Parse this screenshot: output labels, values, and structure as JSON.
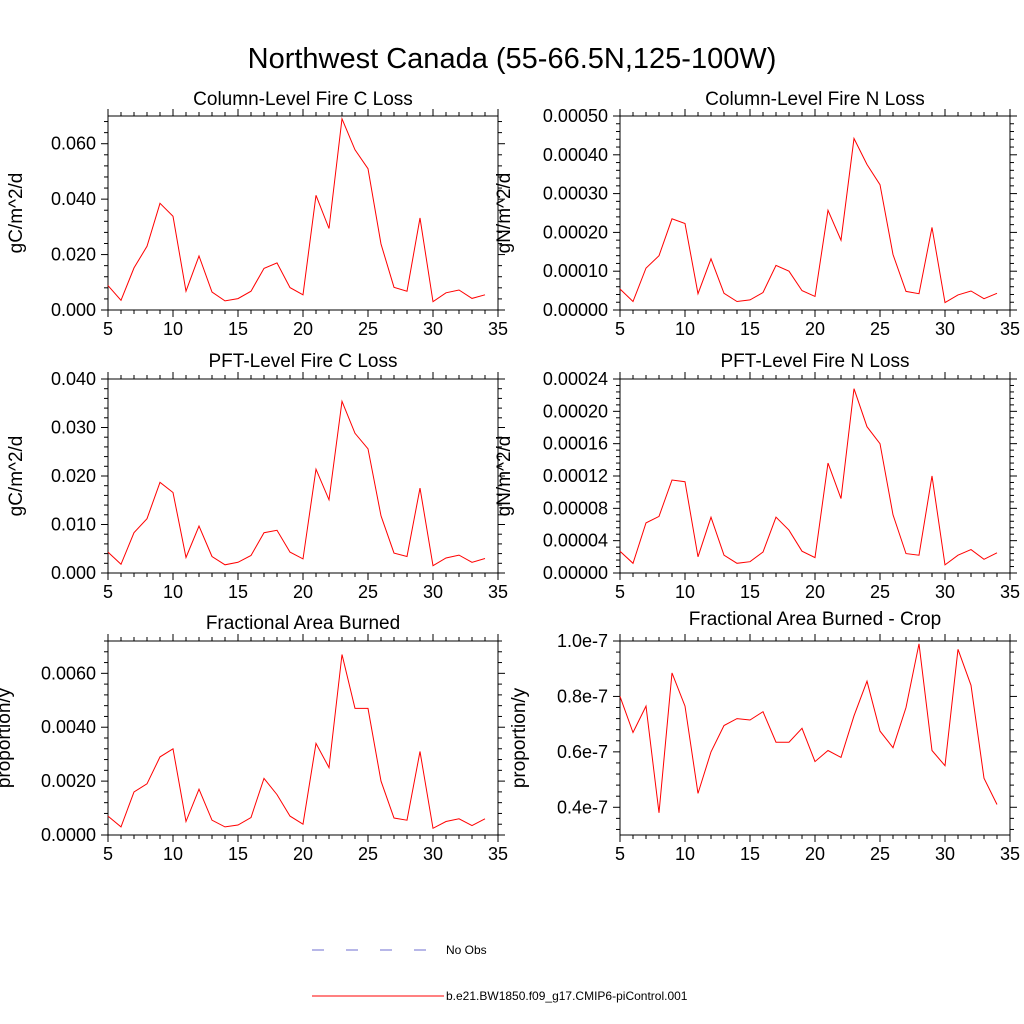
{
  "figure": {
    "title": "Northwest Canada (55-66.5N,125-100W)"
  },
  "chart_data": [
    {
      "type": "line",
      "title": "Column-Level Fire C Loss",
      "xlabel": "",
      "ylabel": "gC/m^2/d",
      "xlim": [
        5,
        35
      ],
      "ylim": [
        0,
        0.07
      ],
      "x_ticks": [
        5,
        10,
        15,
        20,
        25,
        30,
        35
      ],
      "x_tick_labels": [
        "5",
        "10",
        "15",
        "20",
        "25",
        "30",
        "35"
      ],
      "y_ticks": [
        0,
        0.02,
        0.04,
        0.06
      ],
      "y_tick_labels": [
        "0.000",
        "0.020",
        "0.040",
        "0.060"
      ],
      "x": [
        5,
        6,
        7,
        8,
        9,
        10,
        11,
        12,
        13,
        14,
        15,
        16,
        17,
        18,
        19,
        20,
        21,
        22,
        23,
        24,
        25,
        26,
        27,
        28,
        29,
        30,
        31,
        32,
        33,
        34
      ],
      "series": [
        {
          "name": "b.e21.BW1850.f09_g17.CMIP6-piControl.001",
          "values": [
            0.0088,
            0.0035,
            0.0152,
            0.023,
            0.0385,
            0.0338,
            0.0068,
            0.0195,
            0.0065,
            0.0033,
            0.0041,
            0.0068,
            0.015,
            0.017,
            0.0081,
            0.0055,
            0.0414,
            0.0294,
            0.069,
            0.0578,
            0.051,
            0.0238,
            0.0082,
            0.0068,
            0.0332,
            0.003,
            0.0062,
            0.0072,
            0.0042,
            0.0055
          ]
        }
      ]
    },
    {
      "type": "line",
      "title": "Column-Level Fire N Loss",
      "xlabel": "",
      "ylabel": "gN/m^2/d",
      "xlim": [
        5,
        35
      ],
      "ylim": [
        0,
        0.0005
      ],
      "x_ticks": [
        5,
        10,
        15,
        20,
        25,
        30,
        35
      ],
      "x_tick_labels": [
        "5",
        "10",
        "15",
        "20",
        "25",
        "30",
        "35"
      ],
      "y_ticks": [
        0,
        0.0001,
        0.0002,
        0.0003,
        0.0004,
        0.0005
      ],
      "y_tick_labels": [
        "0.00000",
        "0.00010",
        "0.00020",
        "0.00030",
        "0.00040",
        "0.00050"
      ],
      "x": [
        5,
        6,
        7,
        8,
        9,
        10,
        11,
        12,
        13,
        14,
        15,
        16,
        17,
        18,
        19,
        20,
        21,
        22,
        23,
        24,
        25,
        26,
        27,
        28,
        29,
        30,
        31,
        32,
        33,
        34
      ],
      "series": [
        {
          "name": "b.e21.BW1850.f09_g17.CMIP6-piControl.001",
          "values": [
            5.4e-05,
            2.2e-05,
            0.000108,
            0.00014,
            0.000235,
            0.000223,
            4.2e-05,
            0.000132,
            4.3e-05,
            2.2e-05,
            2.6e-05,
            4.5e-05,
            0.000115,
            0.0001,
            5e-05,
            3.5e-05,
            0.000257,
            0.00018,
            0.000442,
            0.000375,
            0.000323,
            0.000143,
            4.8e-05,
            4.2e-05,
            0.000213,
            1.9e-05,
            3.9e-05,
            4.9e-05,
            2.9e-05,
            4.3e-05
          ]
        }
      ]
    },
    {
      "type": "line",
      "title": "PFT-Level Fire C Loss",
      "xlabel": "",
      "ylabel": "gC/m^2/d",
      "xlim": [
        5,
        35
      ],
      "ylim": [
        0,
        0.04
      ],
      "x_ticks": [
        5,
        10,
        15,
        20,
        25,
        30,
        35
      ],
      "x_tick_labels": [
        "5",
        "10",
        "15",
        "20",
        "25",
        "30",
        "35"
      ],
      "y_ticks": [
        0,
        0.01,
        0.02,
        0.03,
        0.04
      ],
      "y_tick_labels": [
        "0.000",
        "0.010",
        "0.020",
        "0.030",
        "0.040"
      ],
      "x": [
        5,
        6,
        7,
        8,
        9,
        10,
        11,
        12,
        13,
        14,
        15,
        16,
        17,
        18,
        19,
        20,
        21,
        22,
        23,
        24,
        25,
        26,
        27,
        28,
        29,
        30,
        31,
        32,
        33,
        34
      ],
      "series": [
        {
          "name": "b.e21.BW1850.f09_g17.CMIP6-piControl.001",
          "values": [
            0.0043,
            0.0018,
            0.0083,
            0.0112,
            0.0187,
            0.0166,
            0.0032,
            0.0097,
            0.0034,
            0.0017,
            0.0022,
            0.0036,
            0.0083,
            0.0088,
            0.0043,
            0.0029,
            0.0214,
            0.0151,
            0.0354,
            0.0288,
            0.0256,
            0.0118,
            0.0041,
            0.0034,
            0.0175,
            0.0015,
            0.0031,
            0.0037,
            0.0022,
            0.003
          ]
        }
      ]
    },
    {
      "type": "line",
      "title": "PFT-Level Fire N Loss",
      "xlabel": "",
      "ylabel": "gN/m^2/d",
      "xlim": [
        5,
        35
      ],
      "ylim": [
        0,
        0.00024
      ],
      "x_ticks": [
        5,
        10,
        15,
        20,
        25,
        30,
        35
      ],
      "x_tick_labels": [
        "5",
        "10",
        "15",
        "20",
        "25",
        "30",
        "35"
      ],
      "y_ticks": [
        0,
        4e-05,
        8e-05,
        0.00012,
        0.00016,
        0.0002,
        0.00024
      ],
      "y_tick_labels": [
        "0.00000",
        "0.00004",
        "0.00008",
        "0.00012",
        "0.00016",
        "0.00020",
        "0.00024"
      ],
      "x": [
        5,
        6,
        7,
        8,
        9,
        10,
        11,
        12,
        13,
        14,
        15,
        16,
        17,
        18,
        19,
        20,
        21,
        22,
        23,
        24,
        25,
        26,
        27,
        28,
        29,
        30,
        31,
        32,
        33,
        34
      ],
      "series": [
        {
          "name": "b.e21.BW1850.f09_g17.CMIP6-piControl.001",
          "values": [
            2.7e-05,
            1.2e-05,
            6.2e-05,
            7e-05,
            0.000115,
            0.000113,
            2e-05,
            6.9e-05,
            2.2e-05,
            1.2e-05,
            1.4e-05,
            2.6e-05,
            6.9e-05,
            5.3e-05,
            2.7e-05,
            1.9e-05,
            0.000136,
            9.2e-05,
            0.000228,
            0.000181,
            0.00016,
            7.2e-05,
            2.4e-05,
            2.2e-05,
            0.00012,
            1e-05,
            2.2e-05,
            2.9e-05,
            1.7e-05,
            2.5e-05
          ]
        }
      ]
    },
    {
      "type": "line",
      "title": "Fractional Area Burned",
      "xlabel": "",
      "ylabel": "proportion/y",
      "xlim": [
        5,
        35
      ],
      "ylim": [
        0,
        0.0072
      ],
      "x_ticks": [
        5,
        10,
        15,
        20,
        25,
        30,
        35
      ],
      "x_tick_labels": [
        "5",
        "10",
        "15",
        "20",
        "25",
        "30",
        "35"
      ],
      "y_ticks": [
        0,
        0.002,
        0.004,
        0.006
      ],
      "y_tick_labels": [
        "0.0000",
        "0.0020",
        "0.0040",
        "0.0060"
      ],
      "x": [
        5,
        6,
        7,
        8,
        9,
        10,
        11,
        12,
        13,
        14,
        15,
        16,
        17,
        18,
        19,
        20,
        21,
        22,
        23,
        24,
        25,
        26,
        27,
        28,
        29,
        30,
        31,
        32,
        33,
        34
      ],
      "series": [
        {
          "name": "b.e21.BW1850.f09_g17.CMIP6-piControl.001",
          "values": [
            0.0007,
            0.0003,
            0.0016,
            0.0019,
            0.0029,
            0.0032,
            0.0005,
            0.0017,
            0.00055,
            0.0003,
            0.00037,
            0.00065,
            0.0021,
            0.0015,
            0.0007,
            0.0004,
            0.0034,
            0.0025,
            0.0067,
            0.0047,
            0.0047,
            0.002,
            0.00063,
            0.00055,
            0.0031,
            0.00025,
            0.0005,
            0.0006,
            0.00035,
            0.0006
          ]
        }
      ]
    },
    {
      "type": "line",
      "title": "Fractional Area Burned - Crop",
      "xlabel": "",
      "ylabel": "proportion/y",
      "xlim": [
        5,
        35
      ],
      "ylim": [
        3e-08,
        1e-07
      ],
      "x_ticks": [
        5,
        10,
        15,
        20,
        25,
        30,
        35
      ],
      "x_tick_labels": [
        "5",
        "10",
        "15",
        "20",
        "25",
        "30",
        "35"
      ],
      "y_ticks": [
        4e-08,
        6e-08,
        8e-08,
        1e-07
      ],
      "y_tick_labels": [
        "0.4e-7",
        "0.6e-7",
        "0.8e-7",
        "1.0e-7"
      ],
      "x": [
        5,
        6,
        7,
        8,
        9,
        10,
        11,
        12,
        13,
        14,
        15,
        16,
        17,
        18,
        19,
        20,
        21,
        22,
        23,
        24,
        25,
        26,
        27,
        28,
        29,
        30,
        31,
        32,
        33,
        34
      ],
      "series": [
        {
          "name": "b.e21.BW1850.f09_g17.CMIP6-piControl.001",
          "values": [
            8e-08,
            6.7e-08,
            7.65e-08,
            3.8e-08,
            8.85e-08,
            7.65e-08,
            4.5e-08,
            6e-08,
            6.95e-08,
            7.2e-08,
            7.15e-08,
            7.45e-08,
            6.35e-08,
            6.35e-08,
            6.85e-08,
            5.65e-08,
            6.05e-08,
            5.8e-08,
            7.3e-08,
            8.55e-08,
            6.75e-08,
            6.15e-08,
            7.6e-08,
            9.9e-08,
            6.05e-08,
            5.5e-08,
            9.7e-08,
            8.4e-08,
            5.05e-08,
            4.1e-08
          ]
        }
      ]
    }
  ],
  "legend": [
    {
      "label": "No Obs",
      "color": "#6f6fd0",
      "style": "dashed"
    },
    {
      "label": "b.e21.BW1850.f09_g17.CMIP6-piControl.001",
      "color": "#ff0000",
      "style": "solid"
    }
  ]
}
